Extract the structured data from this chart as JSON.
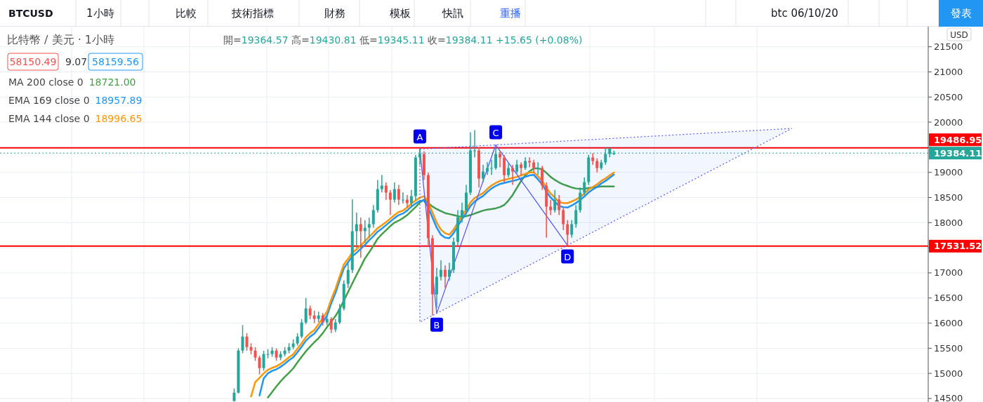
{
  "chart_data": {
    "type": "candlestick",
    "title": "比特幣 / 美元 · 1小時",
    "subtitle": "開=19364.57 高=19430.81 低=19345.11 收=19384.11 +15.65 (+0.08%)",
    "categories": [
      null,
      null,
      null,
      null,
      null,
      null,
      null,
      null,
      null,
      null,
      null,
      null,
      null,
      null,
      null,
      null,
      null,
      null,
      null,
      null,
      null,
      null,
      null,
      null,
      null,
      null,
      null,
      null,
      null,
      null,
      null,
      null,
      null,
      null,
      null,
      null,
      null,
      null,
      null,
      null,
      null,
      null,
      null,
      null,
      null,
      null,
      null,
      null,
      null,
      null,
      null,
      null,
      null,
      null,
      null,
      null,
      null,
      null,
      null,
      null,
      null,
      null,
      null,
      null,
      null,
      null,
      null,
      null,
      null,
      null,
      null,
      null,
      null,
      null,
      null,
      null,
      null,
      null,
      null,
      null,
      null,
      null,
      null,
      null,
      null,
      null,
      null,
      null,
      null,
      null,
      null,
      null,
      null,
      null,
      null,
      null,
      null,
      null,
      null,
      null,
      null,
      null,
      null,
      null,
      null,
      null,
      null,
      null,
      null,
      null,
      null,
      null,
      null,
      null,
      null,
      null,
      null,
      null,
      null,
      null,
      null,
      null,
      null,
      null,
      null,
      null,
      null,
      null,
      null,
      null,
      null,
      null,
      null,
      null,
      null,
      null,
      null,
      null,
      null,
      null,
      null,
      null,
      null,
      null,
      null,
      null,
      null,
      null,
      null,
      null,
      null,
      null,
      null,
      null,
      null,
      null,
      null,
      null,
      null,
      null,
      null,
      null,
      null,
      null,
      null,
      null,
      null,
      null,
      null,
      null,
      null,
      null,
      null,
      null,
      null,
      null,
      null,
      null,
      null,
      null,
      null,
      null,
      null,
      null,
      null,
      null,
      null,
      null,
      null,
      null,
      null,
      null,
      null,
      null,
      null,
      null,
      null,
      null,
      null,
      null,
      null,
      null,
      null,
      null,
      null,
      null,
      null,
      null,
      null,
      null,
      null,
      null,
      null,
      null,
      null,
      null,
      null,
      null,
      null,
      null
    ],
    "ohlc": [
      null,
      null,
      null,
      null,
      null,
      null,
      null,
      null,
      null,
      null,
      null,
      null,
      null,
      null,
      null,
      null,
      null,
      null,
      null,
      null,
      null,
      null,
      null,
      null,
      null,
      null,
      null,
      null,
      null,
      null,
      null,
      null,
      null,
      null,
      null,
      null,
      null,
      null,
      null,
      null,
      null,
      null,
      null,
      null,
      null,
      null,
      null,
      null,
      null,
      null,
      null,
      null,
      null,
      null,
      null,
      [
        14450,
        14700,
        14440,
        14616
      ],
      [
        14616,
        15500,
        14600,
        15454
      ],
      [
        15454,
        15960,
        15400,
        15733
      ],
      [
        15733,
        15800,
        15450,
        15524
      ],
      [
        15524,
        15600,
        15380,
        15454
      ],
      [
        15454,
        15520,
        15250,
        15314
      ],
      [
        15314,
        15350,
        14980,
        15105
      ],
      [
        15105,
        15450,
        15050,
        15384
      ],
      [
        15384,
        15480,
        15300,
        15384
      ],
      [
        15384,
        15520,
        15330,
        15454
      ],
      [
        15454,
        15500,
        15250,
        15314
      ],
      [
        15314,
        15440,
        15260,
        15384
      ],
      [
        15384,
        15520,
        15340,
        15454
      ],
      [
        15454,
        15600,
        15400,
        15524
      ],
      [
        15524,
        15680,
        15480,
        15594
      ],
      [
        15594,
        15800,
        15550,
        15733
      ],
      [
        15733,
        16080,
        15700,
        16013
      ],
      [
        16013,
        16500,
        15980,
        16292
      ],
      [
        16292,
        16350,
        16080,
        16152
      ],
      [
        16152,
        16250,
        16000,
        16083
      ],
      [
        16083,
        16230,
        16020,
        16152
      ],
      [
        16152,
        16200,
        15950,
        16013
      ],
      [
        16013,
        16150,
        15960,
        16083
      ],
      [
        16083,
        16120,
        15800,
        15873
      ],
      [
        15873,
        16080,
        15820,
        16013
      ],
      [
        16013,
        16380,
        15980,
        16292
      ],
      [
        16292,
        16850,
        16250,
        16781
      ],
      [
        16781,
        17200,
        16700,
        17060
      ],
      [
        17060,
        18460,
        17000,
        17829
      ],
      [
        17829,
        18200,
        17500,
        17969
      ],
      [
        17969,
        18100,
        17300,
        17829
      ],
      [
        17829,
        18050,
        17600,
        17899
      ],
      [
        17899,
        18100,
        17700,
        17969
      ],
      [
        17969,
        18350,
        17900,
        18248
      ],
      [
        18248,
        18850,
        18200,
        18667
      ],
      [
        18667,
        18950,
        18600,
        18737
      ],
      [
        18737,
        18800,
        18450,
        18597
      ],
      [
        18597,
        18650,
        18150,
        18457
      ],
      [
        18457,
        18800,
        18400,
        18667
      ],
      [
        18667,
        18750,
        18350,
        18457
      ],
      [
        18457,
        18600,
        18380,
        18457
      ],
      [
        18457,
        18550,
        18300,
        18388
      ],
      [
        18388,
        18650,
        18300,
        18527
      ],
      [
        18527,
        19350,
        18450,
        19296
      ],
      [
        19296,
        19470,
        19150,
        19366
      ],
      [
        19366,
        19420,
        18850,
        18946
      ],
      [
        18946,
        19000,
        17550,
        17689
      ],
      [
        17689,
        17750,
        16150,
        16572
      ],
      [
        16572,
        17100,
        16300,
        16921
      ],
      [
        16921,
        17250,
        16850,
        17060
      ],
      [
        17060,
        17150,
        16700,
        16921
      ],
      [
        16921,
        17200,
        16850,
        17060
      ],
      [
        17060,
        17700,
        17000,
        17619
      ],
      [
        17619,
        18250,
        17550,
        18108
      ],
      [
        18108,
        18400,
        18000,
        18248
      ],
      [
        18248,
        18750,
        18200,
        18597
      ],
      [
        18597,
        19800,
        18550,
        19435
      ],
      [
        19435,
        19840,
        19300,
        19435
      ],
      [
        19435,
        19500,
        18700,
        18877
      ],
      [
        18877,
        19150,
        18800,
        19016
      ],
      [
        19016,
        19200,
        18950,
        19086
      ],
      [
        19086,
        19250,
        18950,
        19086
      ],
      [
        19086,
        19480,
        19050,
        19366
      ],
      [
        19366,
        19420,
        19100,
        19296
      ],
      [
        19296,
        19350,
        18800,
        18946
      ],
      [
        18946,
        19180,
        18900,
        19086
      ],
      [
        19086,
        19150,
        18750,
        19016
      ],
      [
        19016,
        19250,
        18980,
        19156
      ],
      [
        19156,
        19200,
        18950,
        19086
      ],
      [
        19086,
        19300,
        19050,
        19226
      ],
      [
        19226,
        19300,
        19100,
        19198
      ],
      [
        19198,
        19250,
        19000,
        19086
      ],
      [
        19086,
        19200,
        18950,
        19086
      ],
      [
        19086,
        19130,
        18650,
        18737
      ],
      [
        18737,
        18800,
        17700,
        18318
      ],
      [
        18318,
        18450,
        18150,
        18248
      ],
      [
        18248,
        18650,
        18200,
        18457
      ],
      [
        18457,
        18550,
        18150,
        18248
      ],
      [
        18248,
        18300,
        17850,
        17969
      ],
      [
        17969,
        18050,
        17531.52,
        17759
      ],
      [
        17759,
        18050,
        17700,
        17969
      ],
      [
        17969,
        18350,
        17900,
        18248
      ],
      [
        18248,
        18700,
        18200,
        18597
      ],
      [
        18597,
        18900,
        18550,
        18807
      ],
      [
        18807,
        19350,
        18750,
        19296
      ],
      [
        19296,
        19380,
        19150,
        19226
      ],
      [
        19226,
        19280,
        19000,
        19086
      ],
      [
        19086,
        19250,
        19050,
        19198
      ],
      [
        19198,
        19487,
        19150,
        19366
      ],
      [
        19366,
        19486.95,
        19300,
        19477
      ],
      [
        19364.57,
        19430.81,
        19345.11,
        19384.11
      ],
      null,
      null,
      null,
      null,
      null,
      null,
      null,
      null,
      null,
      null,
      null,
      null,
      null,
      null,
      null,
      null,
      null,
      null,
      null,
      null,
      null,
      null,
      null,
      null,
      null,
      null,
      null,
      null,
      null,
      null,
      null,
      null,
      null,
      null,
      null,
      null,
      null,
      null,
      null,
      null,
      null,
      null,
      null,
      null,
      null,
      null,
      null,
      null,
      null,
      null,
      null,
      null,
      null,
      null,
      null,
      null,
      null,
      null,
      null,
      null,
      null,
      null,
      null,
      null,
      null,
      null,
      null,
      null,
      null,
      null,
      null,
      null,
      null,
      null
    ],
    "series": [
      {
        "type": "line",
        "color": "#43a047",
        "values": [
          null,
          null,
          null,
          null,
          null,
          null,
          null,
          null,
          null,
          null,
          null,
          null,
          null,
          null,
          null,
          null,
          null,
          null,
          null,
          null,
          null,
          null,
          null,
          null,
          null,
          null,
          null,
          null,
          null,
          null,
          null,
          null,
          null,
          null,
          null,
          null,
          null,
          null,
          null,
          null,
          null,
          null,
          null,
          null,
          null,
          null,
          null,
          null,
          null,
          null,
          null,
          null,
          null,
          null,
          null,
          null,
          null,
          null,
          null,
          null,
          null,
          null,
          null,
          14520,
          14630,
          14740,
          14840,
          14930,
          15010,
          15100,
          15220,
          15330,
          15440,
          15530,
          15620,
          15700,
          15800,
          15920,
          16030,
          16140,
          16280,
          16450,
          16620,
          16790,
          16960,
          17120,
          17290,
          17410,
          17540,
          17680,
          17770,
          17850,
          17930,
          18000,
          18040,
          18090,
          18150,
          18230,
          18310,
          18400,
          18457,
          18390,
          18320,
          18270,
          18230,
          18190,
          18170,
          18150,
          18130,
          18110,
          18130,
          18150,
          18180,
          18210,
          18240,
          18260,
          18270,
          18285,
          18310,
          18350,
          18440,
          18550,
          18690,
          18830,
          18940,
          19020,
          19080,
          19080,
          19060,
          18990,
          18910,
          18850,
          18800,
          18760,
          18730,
          18700,
          18680,
          18670,
          18675,
          18690,
          18700,
          18710,
          18720,
          18720,
          18721,
          18721.0,
          null,
          null,
          null,
          null,
          null,
          null,
          null,
          null,
          null,
          null,
          null,
          null,
          null,
          null,
          null,
          null,
          null,
          null,
          null,
          null,
          null,
          null,
          null,
          null,
          null,
          null,
          null,
          null,
          null,
          null,
          null,
          null,
          null,
          null,
          null,
          null,
          null,
          null,
          null,
          null,
          null,
          null,
          null,
          null,
          null,
          null,
          null,
          null,
          null,
          null,
          null,
          null,
          null,
          null,
          null,
          null,
          null,
          null,
          null,
          null,
          null,
          null,
          null,
          null,
          null,
          null,
          null,
          null,
          null,
          null,
          null,
          null,
          null,
          null
        ]
      },
      {
        "type": "line",
        "color": "#2196f3",
        "values": [
          null,
          null,
          null,
          null,
          null,
          null,
          null,
          null,
          null,
          null,
          null,
          null,
          null,
          null,
          null,
          null,
          null,
          null,
          null,
          null,
          null,
          null,
          null,
          null,
          null,
          null,
          null,
          null,
          null,
          null,
          null,
          null,
          null,
          null,
          null,
          null,
          null,
          null,
          null,
          null,
          null,
          null,
          null,
          null,
          null,
          null,
          null,
          null,
          null,
          null,
          null,
          null,
          null,
          null,
          null,
          null,
          null,
          null,
          null,
          null,
          null,
          14560,
          14900,
          15000,
          15050,
          15080,
          15130,
          15190,
          15260,
          15320,
          15420,
          15530,
          15650,
          15730,
          15790,
          15900,
          16020,
          16150,
          16390,
          16600,
          16850,
          17090,
          17210,
          17330,
          17400,
          17480,
          17560,
          17650,
          17730,
          17820,
          17880,
          17950,
          18020,
          18090,
          18150,
          18180,
          18240,
          18320,
          18380,
          18430,
          18440,
          18300,
          18100,
          17900,
          17760,
          17700,
          17690,
          17790,
          17930,
          18070,
          18190,
          18330,
          18420,
          18480,
          18530,
          18610,
          18680,
          18730,
          18770,
          18790,
          18810,
          18830,
          18850,
          18880,
          18910,
          18940,
          18950,
          18860,
          18760,
          18620,
          18500,
          18420,
          18330,
          18310,
          18300,
          18340,
          18390,
          18450,
          18520,
          18600,
          18660,
          18710,
          18780,
          18830,
          18890,
          18957.89,
          null,
          null,
          null,
          null,
          null,
          null,
          null,
          null,
          null,
          null,
          null,
          null,
          null,
          null,
          null,
          null,
          null,
          null,
          null,
          null,
          null,
          null,
          null,
          null,
          null,
          null,
          null,
          null,
          null,
          null,
          null,
          null,
          null,
          null,
          null,
          null,
          null,
          null,
          null,
          null,
          null,
          null,
          null,
          null,
          null,
          null,
          null,
          null,
          null,
          null,
          null,
          null,
          null,
          null,
          null,
          null,
          null,
          null,
          null,
          null,
          null,
          null,
          null,
          null,
          null,
          null,
          null,
          null,
          null,
          null,
          null,
          null,
          null,
          null
        ]
      },
      {
        "type": "line",
        "color": "#ff9800",
        "values": [
          null,
          null,
          null,
          null,
          null,
          null,
          null,
          null,
          null,
          null,
          null,
          null,
          null,
          null,
          null,
          null,
          null,
          null,
          null,
          null,
          null,
          null,
          null,
          null,
          null,
          null,
          null,
          null,
          null,
          null,
          null,
          null,
          null,
          null,
          null,
          null,
          null,
          null,
          null,
          null,
          null,
          null,
          null,
          null,
          null,
          null,
          null,
          null,
          null,
          null,
          null,
          null,
          null,
          null,
          null,
          null,
          null,
          null,
          null,
          14540,
          14825,
          14910,
          15000,
          15070,
          15110,
          15140,
          15190,
          15250,
          15320,
          15380,
          15490,
          15600,
          15720,
          15800,
          15860,
          15980,
          16100,
          16230,
          16470,
          16680,
          16930,
          17170,
          17280,
          17400,
          17470,
          17550,
          17630,
          17720,
          17800,
          17890,
          17950,
          18010,
          18080,
          18150,
          18210,
          18240,
          18300,
          18380,
          18440,
          18495,
          18527,
          18400,
          18200,
          18000,
          17860,
          17790,
          17760,
          17860,
          18000,
          18140,
          18260,
          18400,
          18490,
          18540,
          18590,
          18670,
          18740,
          18790,
          18830,
          18850,
          18870,
          18890,
          18910,
          18940,
          18970,
          19000,
          19000,
          18920,
          18830,
          18690,
          18580,
          18500,
          18410,
          18390,
          18388,
          18420,
          18460,
          18510,
          18580,
          18660,
          18710,
          18760,
          18830,
          18880,
          18940,
          18996.65,
          null,
          null,
          null,
          null,
          null,
          null,
          null,
          null,
          null,
          null,
          null,
          null,
          null,
          null,
          null,
          null,
          null,
          null,
          null,
          null,
          null,
          null,
          null,
          null,
          null,
          null,
          null,
          null,
          null,
          null,
          null,
          null,
          null,
          null,
          null,
          null,
          null,
          null,
          null,
          null,
          null,
          null,
          null,
          null,
          null,
          null,
          null,
          null,
          null,
          null,
          null,
          null,
          null,
          null,
          null,
          null,
          null,
          null,
          null,
          null,
          null,
          null,
          null,
          null,
          null,
          null,
          null,
          null,
          null,
          null,
          null,
          null,
          null,
          null
        ]
      },
      {
        "type": "line",
        "color": "#5b5bf0",
        "values": [
          null,
          null,
          null,
          null,
          null,
          null,
          null,
          null,
          null,
          null,
          null,
          null,
          null,
          null,
          null,
          null,
          null,
          null,
          null,
          null,
          null,
          null,
          null,
          null,
          null,
          null,
          null,
          null,
          null,
          null,
          null,
          null,
          null,
          null,
          null,
          null,
          null,
          null,
          null,
          null,
          null,
          null,
          null,
          null,
          null,
          null,
          null,
          null,
          null,
          null,
          null,
          null,
          null,
          null,
          null,
          null,
          null,
          null,
          null,
          null,
          null,
          null,
          null,
          null,
          null,
          null,
          null,
          null,
          null,
          null,
          null,
          null,
          null,
          null,
          null,
          null,
          null,
          null,
          null,
          null,
          null,
          null,
          null,
          null,
          null,
          null,
          null,
          null,
          null,
          null,
          null,
          null,
          null,
          null,
          null,
          null,
          null,
          null,
          null,
          19463,
          null,
          null,
          null,
          16194,
          null,
          null,
          null,
          null,
          null,
          null,
          null,
          null,
          null,
          null,
          null,
          null,
          null,
          19547,
          null,
          null,
          null,
          null,
          null,
          null,
          null,
          null,
          null,
          null,
          null,
          null,
          null,
          null,
          null,
          null,
          17549,
          null,
          null,
          null,
          null,
          null,
          null,
          null,
          null,
          null,
          null,
          null,
          null,
          null,
          null,
          null,
          null,
          null,
          null,
          null,
          null,
          null,
          null,
          null,
          null,
          null,
          null,
          null,
          null,
          null,
          null,
          null,
          null,
          null,
          null,
          null,
          null,
          null,
          null,
          null,
          null,
          null,
          null,
          null,
          null,
          null,
          null,
          null,
          null,
          null,
          null,
          null,
          null,
          null,
          null,
          null,
          null,
          null,
          null,
          null,
          null,
          null,
          null,
          null,
          null,
          null,
          null,
          null,
          null,
          null,
          null,
          null,
          null,
          null,
          null,
          null,
          null,
          null,
          null,
          null,
          null,
          null,
          null,
          null,
          null,
          null
        ]
      }
    ],
    "ylim": [
      14430,
      21900
    ],
    "yticks": [
      14500,
      15000,
      15500,
      16000,
      16500,
      17000,
      {
        "value": 17500,
        "label": null
      },
      18000,
      18500,
      19000,
      {
        "value": 19500,
        "label": null
      },
      20000,
      20500,
      21000,
      21500
    ],
    "tick_labels": "y",
    "grid": true,
    "ref_lines": [
      {
        "axis": "y",
        "value": 19486.95,
        "label": "19486.95",
        "color": "#ff0000"
      },
      {
        "axis": "y",
        "value": 17531.52,
        "label": "17531.52",
        "color": "#ff0000"
      },
      {
        "axis": "y",
        "value": 19384.11,
        "label": "19384.11",
        "color": "#26a69a",
        "line_style": "dotted"
      }
    ],
    "annotations": [
      "BTCUSD",
      "1小時",
      "比較",
      "技術指標",
      "財務",
      "模板",
      "快訊",
      "重播",
      "btc 06/10/20",
      "發表",
      "58150.49",
      "9.07",
      "58159.56",
      "USD",
      "MA 200 close 0",
      "EMA 169 close 0",
      "EMA 144 close 0",
      "18721.00",
      "18957.89",
      "18996.65",
      "A",
      "B",
      "C",
      "D"
    ]
  }
}
